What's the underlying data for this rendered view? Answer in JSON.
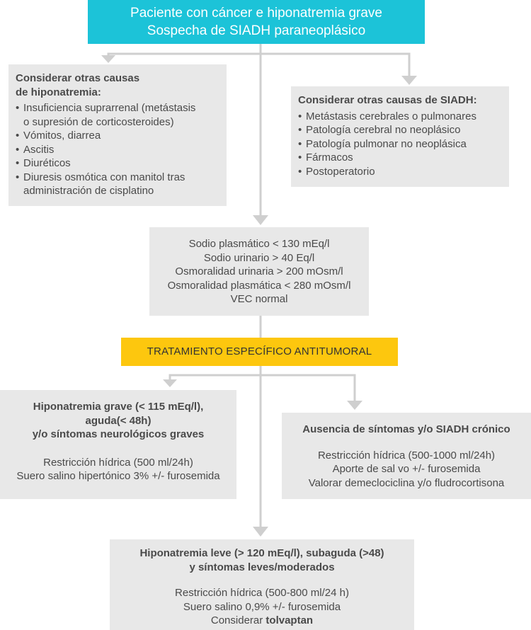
{
  "top": {
    "line1": "Paciente con cáncer e hiponatremia grave",
    "line2": "Sospecha de SIADH paraneoplásico"
  },
  "other_causes_hyponatremia": {
    "title_line1": "Considerar otras causas",
    "title_line2": "de hiponatremia:",
    "items": [
      [
        "Insuficiencia suprarrenal (metástasis",
        "o supresión de corticosteroides)"
      ],
      [
        "Vómitos, diarrea"
      ],
      [
        "Ascitis"
      ],
      [
        "Diuréticos"
      ],
      [
        "Diuresis osmótica con manitol tras",
        "administración de cisplatino"
      ]
    ]
  },
  "other_causes_siadh": {
    "title": "Considerar otras causas de SIADH:",
    "items": [
      "Metástasis cerebrales o pulmonares",
      "Patología cerebral no neoplásico",
      "Patología pulmonar no neoplásica",
      "Fármacos",
      "Postoperatorio"
    ]
  },
  "labs": {
    "items": [
      "Sodio plasmático < 130 mEq/l",
      "Sodio urinario > 40 Eq/l",
      "Osmoralidad urinaria > 200 mOsm/l",
      "Osmoralidad plasmática < 280 mOsm/l",
      "VEC normal"
    ]
  },
  "treatment": {
    "label": "TRATAMIENTO ESPECÍFICO ANTITUMORAL"
  },
  "severe": {
    "title_line1": "Hiponatremia grave (< 115 mEq/l),",
    "title_line2": "aguda(< 48h)",
    "title_line3": "y/o síntomas neurológicos graves",
    "line1": "Restricción hídrica (500 ml/24h)",
    "line2": "Suero salino hipertónico 3% +/- furosemida"
  },
  "chronic": {
    "title": "Ausencia de síntomas y/o SIADH crónico",
    "line1": "Restricción hídrica (500-1000 ml/24h)",
    "line2": "Aporte de sal vo +/- furosemida",
    "line3": "Valorar demeclociclina y/o fludrocortisona"
  },
  "mild": {
    "title_line1": "Hiponatremia leve (> 120 mEq/l), subaguda (>48)",
    "title_line2": "y síntomas leves/moderados",
    "line1": "Restricción hídrica (500-800 ml/24 h)",
    "line2": "Suero salino 0,9% +/- furosemida",
    "line3_prefix": "Considerar ",
    "line3_bold": "tolvaptan"
  },
  "colors": {
    "top_box": "#1cc3d8",
    "treatment_box": "#fdc70e",
    "gray_box": "#e8e8e8",
    "connector": "#cfcfcf",
    "text": "#4a4a4a"
  }
}
